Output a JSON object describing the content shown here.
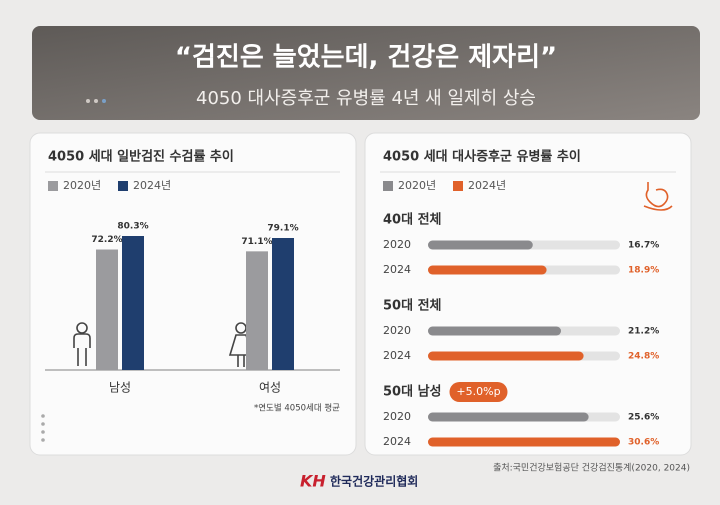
{
  "header": {
    "title": "“검진은 늘었는데, 건강은 제자리”",
    "subtitle": "4050 대사증후군 유병률 4년 새 일제히 상승"
  },
  "chart_data": [
    {
      "type": "bar",
      "title": "4050 세대 일반검진 수검률 추이",
      "categories": [
        "남성",
        "여성"
      ],
      "series": [
        {
          "name": "2020년",
          "color": "#9b9b9e",
          "values": [
            72.2,
            71.1
          ],
          "value_labels": [
            "72.2%",
            "71.1%"
          ]
        },
        {
          "name": "2024년",
          "color": "#1f3e6e",
          "values": [
            80.3,
            79.1
          ],
          "value_labels": [
            "80.3%",
            "79.1%"
          ]
        }
      ],
      "note": "*연도별 4050세대 평균"
    },
    {
      "type": "hbar",
      "title": "4050 세대 대사증후군 유병률 추이",
      "categories": [
        "40대 전체",
        "50대 전체",
        "50대 남성"
      ],
      "row_labels": [
        "2020",
        "2024"
      ],
      "series": [
        {
          "name": "2020년",
          "color": "#8a8a8d",
          "values": [
            16.7,
            21.2,
            25.6
          ],
          "value_labels": [
            "16.7%",
            "21.2%",
            "25.6%"
          ]
        },
        {
          "name": "2024년",
          "color": "#e0612a",
          "values": [
            18.9,
            24.8,
            30.6
          ],
          "value_labels": [
            "18.9%",
            "24.8%",
            "30.6%"
          ]
        }
      ],
      "annotation": "+5.0%p"
    }
  ],
  "footer": {
    "source": "출처:국민건강보험공단 건강검진통계(2020, 2024)",
    "logo_mark": "KH",
    "organization": "한국건강관리협회"
  }
}
